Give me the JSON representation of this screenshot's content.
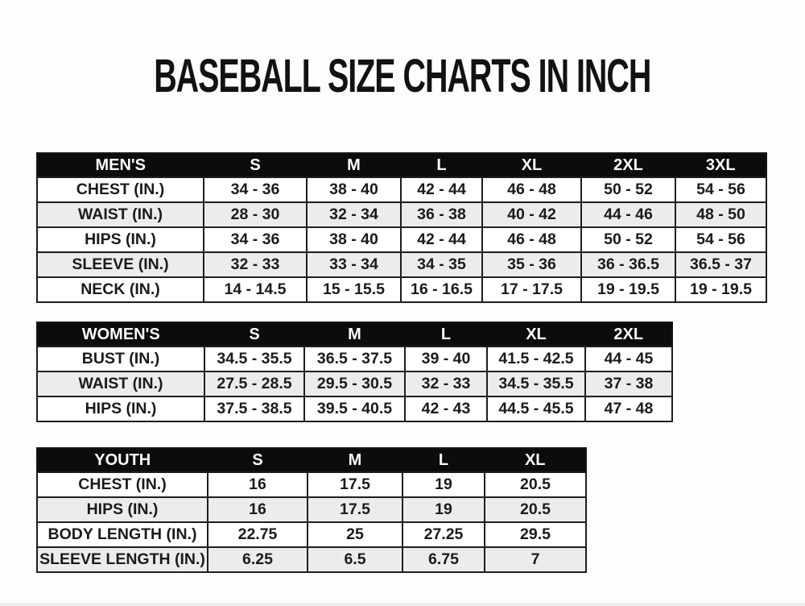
{
  "title": "BASEBALL SIZE CHARTS IN INCH",
  "colors": {
    "header_bg": "#0c0c0c",
    "header_text": "#fbfbfb",
    "row_bg": "#ffffff",
    "row_alt_bg": "#ececec",
    "border": "#1e1e1e",
    "cell_text": "#1b1b1b",
    "page_bg": "#fdfdfd"
  },
  "chart_data": [
    {
      "type": "table",
      "id": "mens",
      "title": "MEN'S",
      "columns": [
        "MEN'S",
        "S",
        "M",
        "L",
        "XL",
        "2XL",
        "3XL"
      ],
      "rows": [
        [
          "CHEST (IN.)",
          "34 - 36",
          "38 - 40",
          "42 - 44",
          "46 - 48",
          "50 - 52",
          "54 - 56"
        ],
        [
          "WAIST (IN.)",
          "28 - 30",
          "32 - 34",
          "36 - 38",
          "40 - 42",
          "44 - 46",
          "48 - 50"
        ],
        [
          "HIPS (IN.)",
          "34 - 36",
          "38 - 40",
          "42 - 44",
          "46 - 48",
          "50 - 52",
          "54 - 56"
        ],
        [
          "SLEEVE (IN.)",
          "32 - 33",
          "33 - 34",
          "34 - 35",
          "35 - 36",
          "36 - 36.5",
          "36.5 - 37"
        ],
        [
          "NECK (IN.)",
          "14 - 14.5",
          "15 - 15.5",
          "16 - 16.5",
          "17 - 17.5",
          "19 - 19.5",
          "19 - 19.5"
        ]
      ]
    },
    {
      "type": "table",
      "id": "womens",
      "title": "WOMEN'S",
      "columns": [
        "WOMEN'S",
        "S",
        "M",
        "L",
        "XL",
        "2XL"
      ],
      "rows": [
        [
          "BUST (IN.)",
          "34.5 - 35.5",
          "36.5 - 37.5",
          "39 - 40",
          "41.5 - 42.5",
          "44 - 45"
        ],
        [
          "WAIST (IN.)",
          "27.5 - 28.5",
          "29.5 - 30.5",
          "32 - 33",
          "34.5 - 35.5",
          "37 - 38"
        ],
        [
          "HIPS (IN.)",
          "37.5 - 38.5",
          "39.5 - 40.5",
          "42 - 43",
          "44.5 - 45.5",
          "47 - 48"
        ]
      ]
    },
    {
      "type": "table",
      "id": "youth",
      "title": "YOUTH",
      "columns": [
        "YOUTH",
        "S",
        "M",
        "L",
        "XL"
      ],
      "rows": [
        [
          "CHEST (IN.)",
          "16",
          "17.5",
          "19",
          "20.5"
        ],
        [
          "HIPS (IN.)",
          "16",
          "17.5",
          "19",
          "20.5"
        ],
        [
          "BODY LENGTH (IN.)",
          "22.75",
          "25",
          "27.25",
          "29.5"
        ],
        [
          "SLEEVE LENGTH (IN.)",
          "6.25",
          "6.5",
          "6.75",
          "7"
        ]
      ]
    }
  ]
}
